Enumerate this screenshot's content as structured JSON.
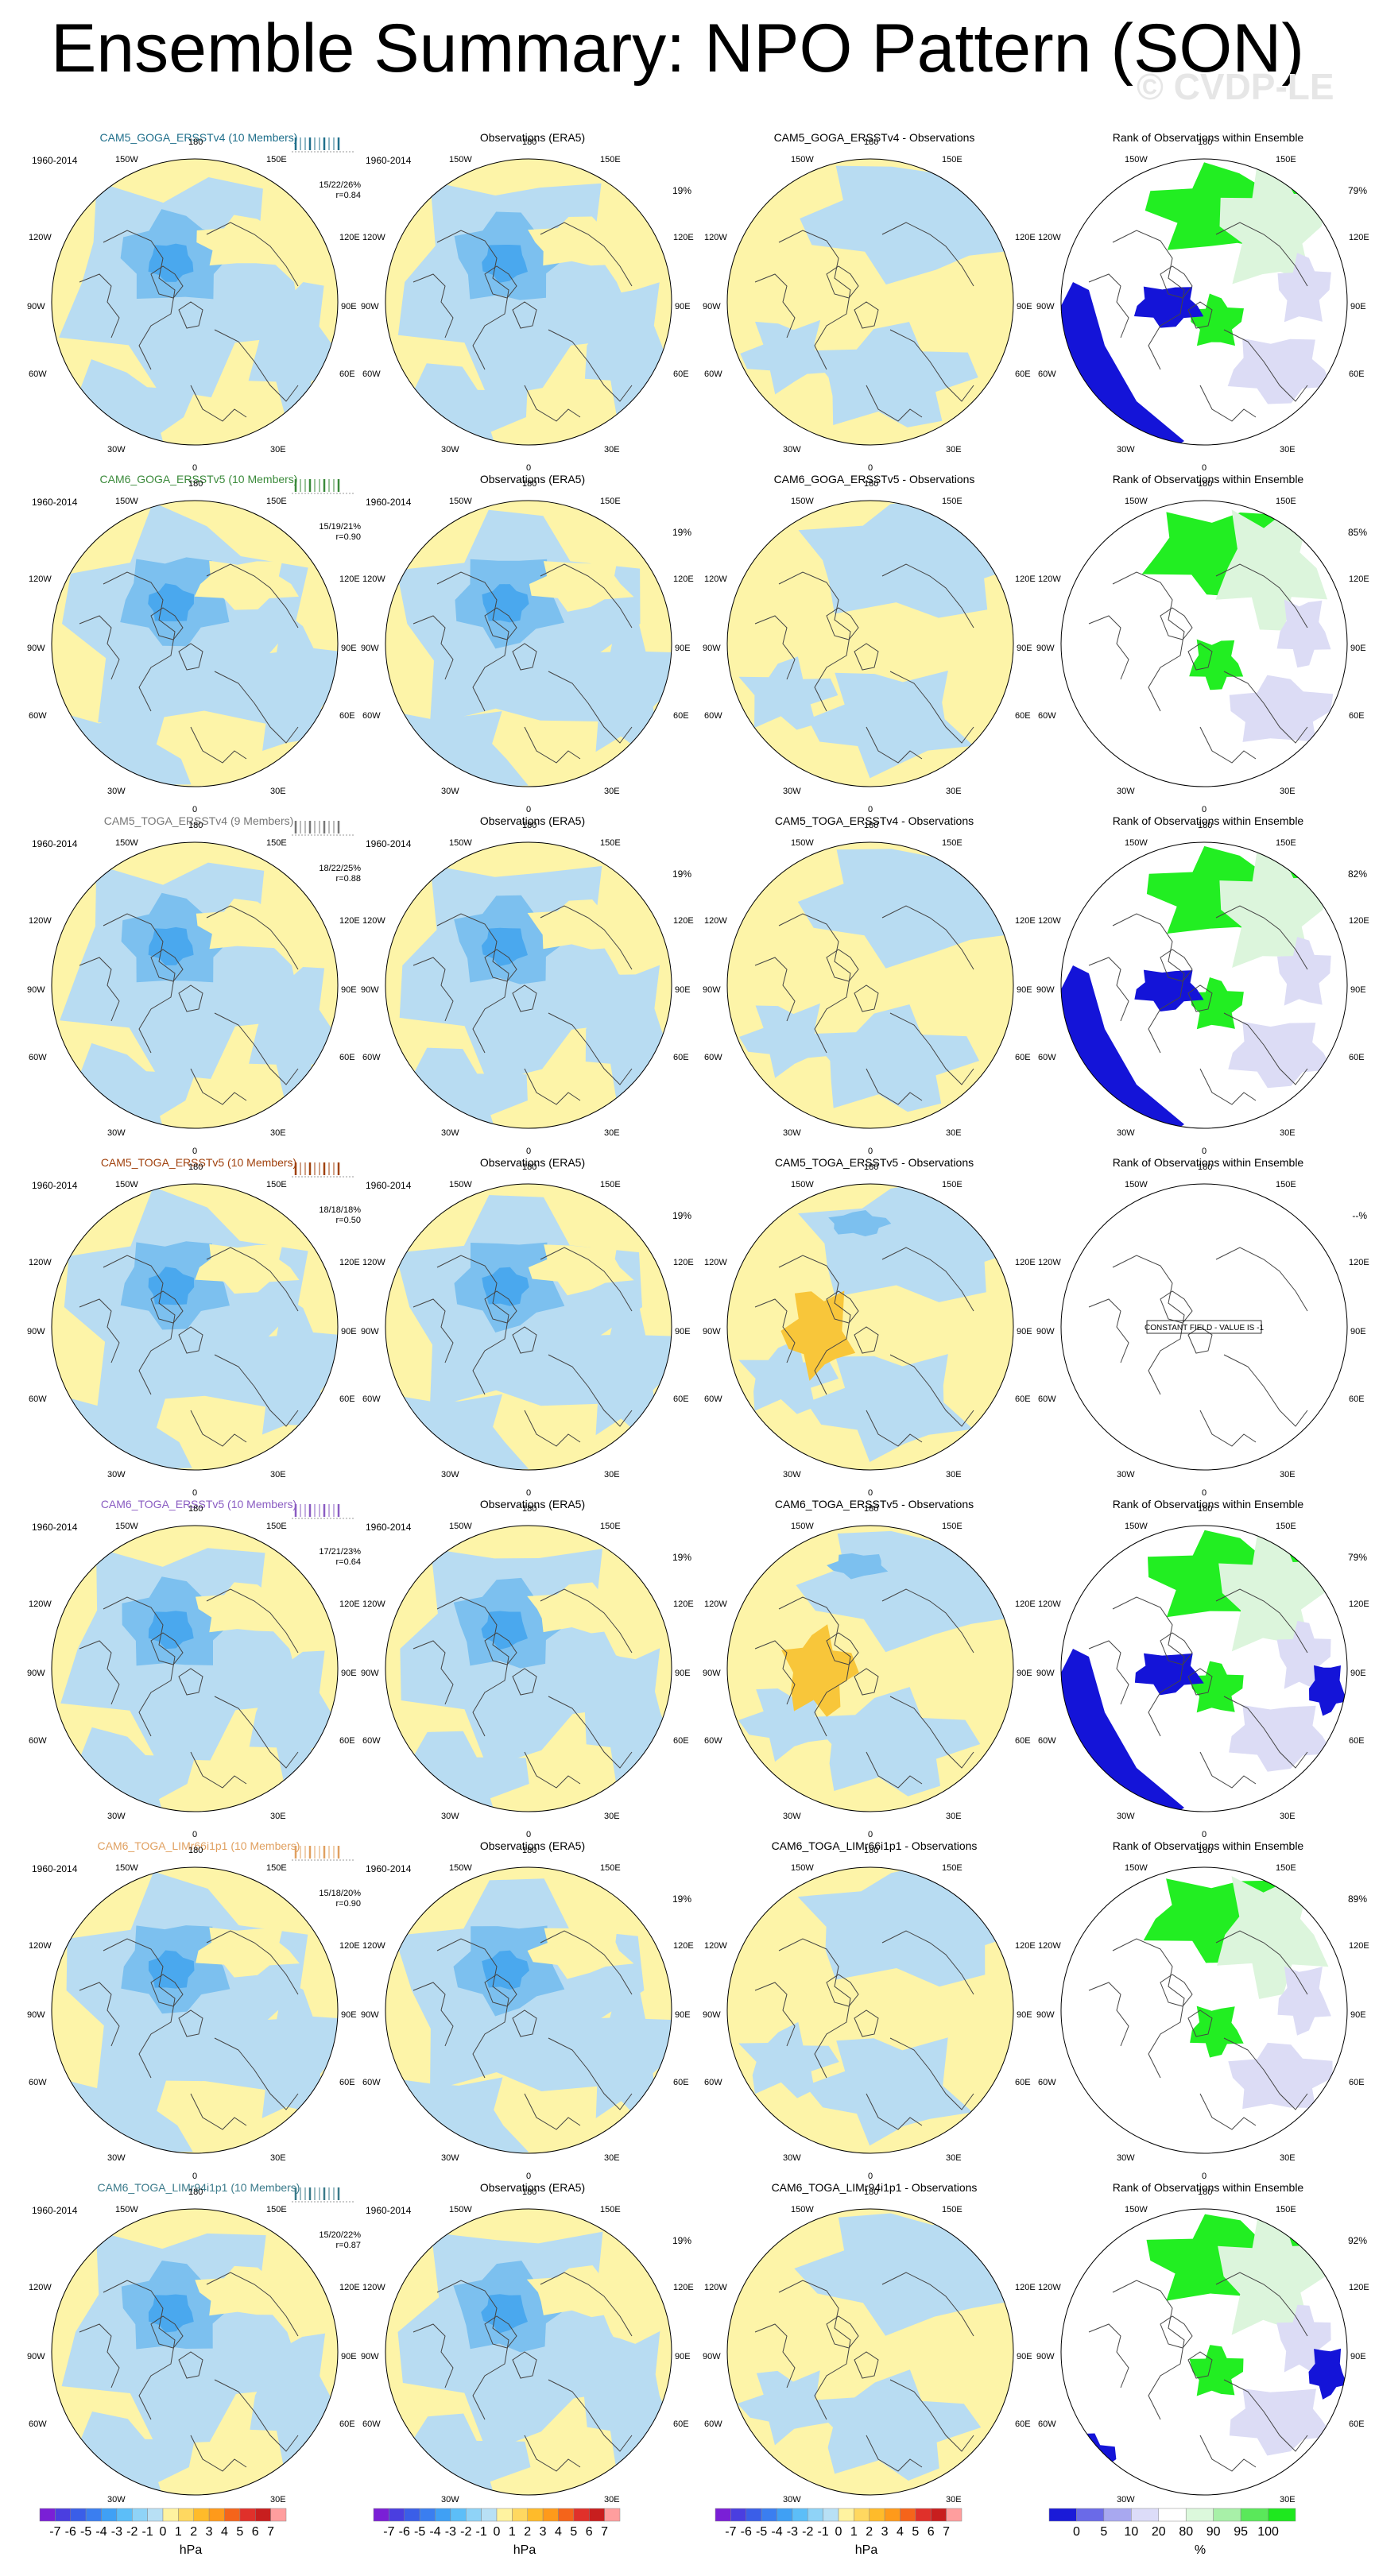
{
  "title": "Ensemble Summary: NPO Pattern (SON)",
  "watermark": "© CVDP-LE",
  "years": "1960-2014",
  "obs_title": "Observations (ERA5)",
  "obs_pct": "19%",
  "rank_title": "Rank of Observations within Ensemble",
  "constant_field": "CONSTANT FIELD - VALUE IS -1",
  "lon_labels": {
    "top": "180",
    "tl": "150W",
    "tr": "150E",
    "ul": "120W",
    "ur": "120E",
    "ml": "90W",
    "mr": "90E",
    "ll": "60W",
    "lr": "60E",
    "bl": "30W",
    "br": "30E",
    "bottom": "0"
  },
  "rows": [
    {
      "ens_title": "CAM5_GOGA_ERSSTv4 (10 Members)",
      "color": "#1f6f8b",
      "stats1": "15/22/26%",
      "stats2": "r=0.84",
      "diff_title": "CAM5_GOGA_ERSSTv4 - Observations",
      "rank_pct": "79%"
    },
    {
      "ens_title": "CAM6_GOGA_ERSSTv5 (10 Members)",
      "color": "#3a8a3a",
      "stats1": "15/19/21%",
      "stats2": "r=0.90",
      "diff_title": "CAM6_GOGA_ERSSTv5 - Observations",
      "rank_pct": "85%"
    },
    {
      "ens_title": "CAM5_TOGA_ERSSTv4 (9 Members)",
      "color": "#777777",
      "stats1": "18/22/25%",
      "stats2": "r=0.88",
      "diff_title": "CAM5_TOGA_ERSSTv4 - Observations",
      "rank_pct": "82%"
    },
    {
      "ens_title": "CAM5_TOGA_ERSSTv5 (10 Members)",
      "color": "#a0410d",
      "stats1": "18/18/18%",
      "stats2": "r=0.50",
      "diff_title": "CAM5_TOGA_ERSSTv5 - Observations",
      "rank_pct": "--%"
    },
    {
      "ens_title": "CAM6_TOGA_ERSSTv5 (10 Members)",
      "color": "#8a5cc2",
      "stats1": "17/21/23%",
      "stats2": "r=0.64",
      "diff_title": "CAM6_TOGA_ERSSTv5 - Observations",
      "rank_pct": "79%"
    },
    {
      "ens_title": "CAM6_TOGA_LIMr66i1p1 (10 Members)",
      "color": "#e0a060",
      "stats1": "15/18/20%",
      "stats2": "r=0.90",
      "diff_title": "CAM6_TOGA_LIMr66i1p1 - Observations",
      "rank_pct": "89%"
    },
    {
      "ens_title": "CAM6_TOGA_LIMr94i1p1 (10 Members)",
      "color": "#3a7a8a",
      "stats1": "15/20/22%",
      "stats2": "r=0.87",
      "diff_title": "CAM6_TOGA_LIMr94i1p1 - Observations",
      "rank_pct": "92%"
    }
  ],
  "colorbar_hpa": {
    "unit": "hPa",
    "labels": [
      "-7",
      "-6",
      "-5",
      "-4",
      "-3",
      "-2",
      "-1",
      "0",
      "1",
      "2",
      "3",
      "4",
      "5",
      "6",
      "7"
    ],
    "colors": [
      "#7a1fd6",
      "#4a3ee0",
      "#3a5ee8",
      "#3a7ef0",
      "#3fa0f5",
      "#5cbef8",
      "#8fd3f7",
      "#b8e0f5",
      "#fff3a0",
      "#ffd860",
      "#ffbb2a",
      "#ff9a1a",
      "#f5641a",
      "#e0302a",
      "#c81e1e",
      "#ff9e9e"
    ]
  },
  "colorbar_rank": {
    "unit": "%",
    "labels": [
      "0",
      "5",
      "10",
      "20",
      "80",
      "90",
      "95",
      "100"
    ],
    "colors": [
      "#1a1ad8",
      "#6a6ae8",
      "#a8a8f0",
      "#dcdcf8",
      "#ffffff",
      "#dcf8dc",
      "#a8f0a8",
      "#5ae85a",
      "#1ee81e"
    ]
  },
  "colors": {
    "ocean_blue": "#b8dcf2",
    "mid_blue": "#7cc0ef",
    "deep_blue": "#4aa8ee",
    "yellow": "#fdf4a8",
    "orange": "#f8c63a",
    "rank_blue": "#1414d8",
    "rank_green": "#22ee22",
    "rank_lav": "#dcdcf5",
    "rank_lgreen": "#dcf5dc"
  }
}
